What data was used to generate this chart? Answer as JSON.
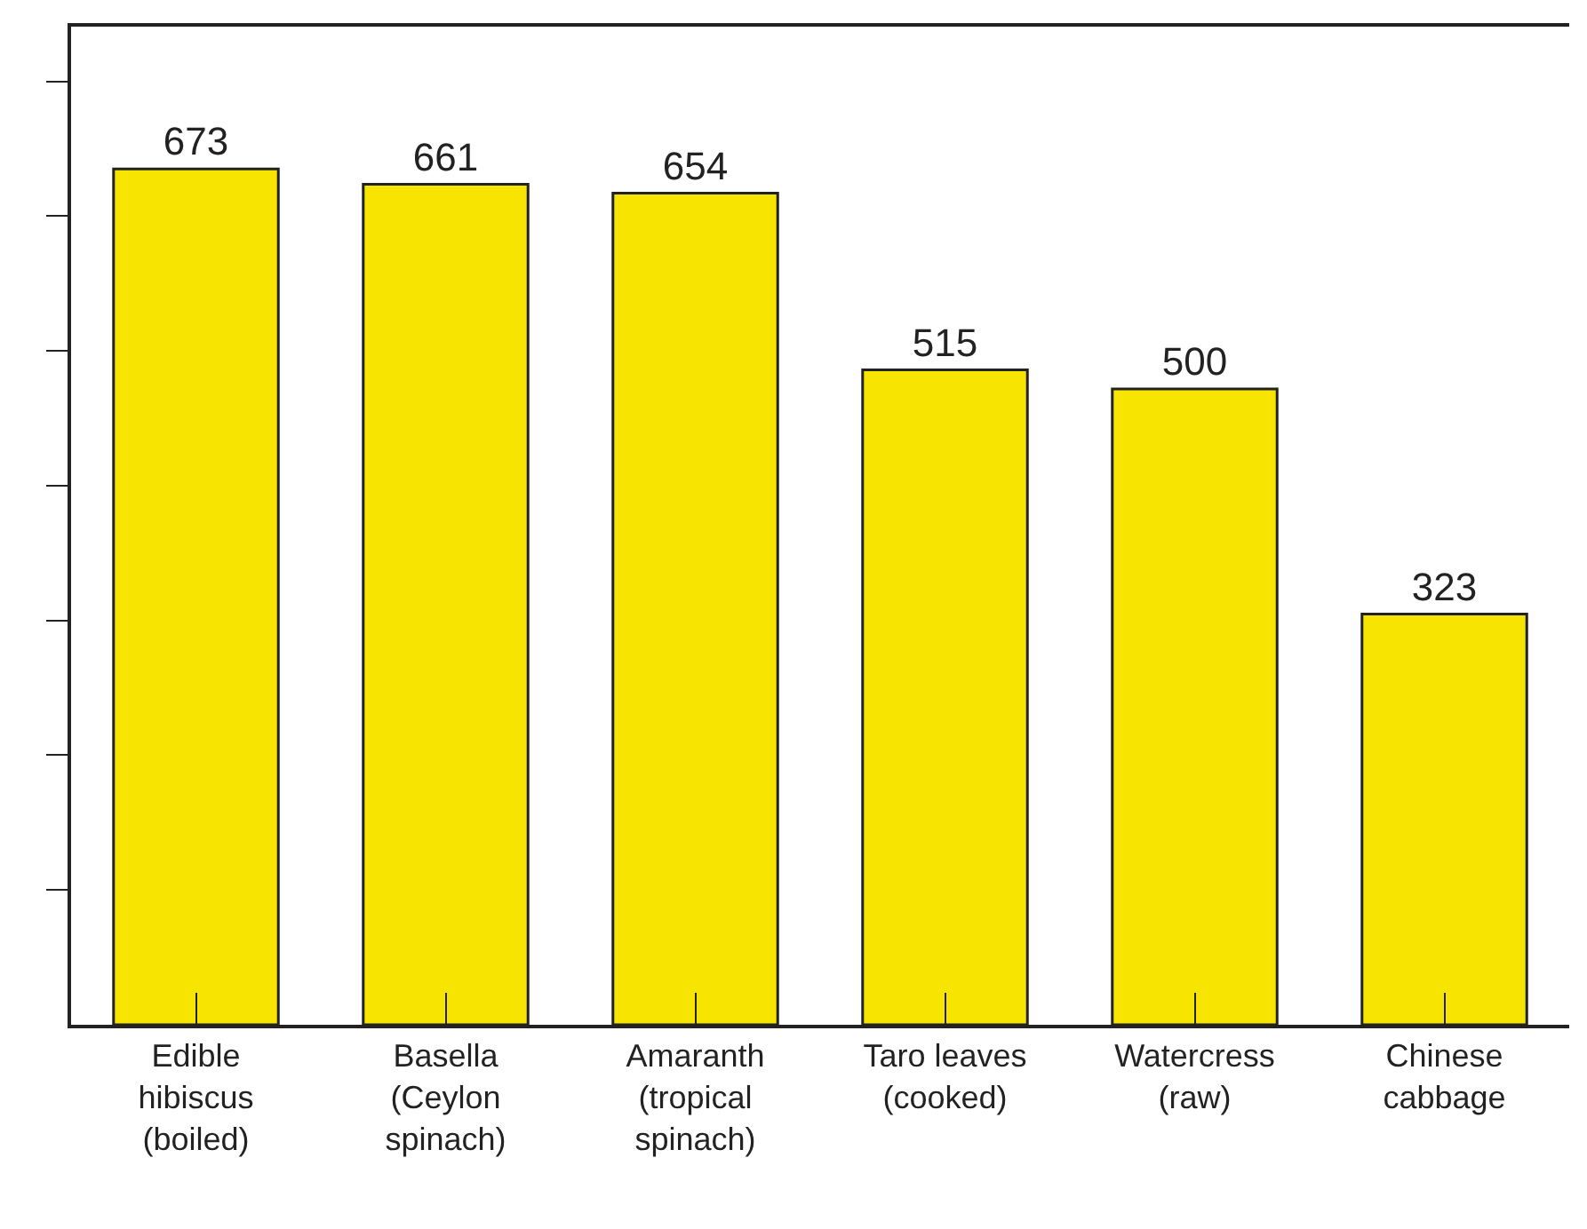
{
  "chart_data": {
    "type": "bar",
    "categories": [
      "Edible\nhibiscus\n(boiled)",
      "Basella\n(Ceylon\nspinach)",
      "Amaranth\n(tropical\nspinach)",
      "Taro leaves\n(cooked)",
      "Watercress\n(raw)",
      "Chinese\ncabbage"
    ],
    "values": [
      673,
      661,
      654,
      515,
      500,
      323
    ],
    "color": "#f7e400",
    "data_labels": true,
    "ylim": [
      0,
      785
    ],
    "yticks": [
      {
        "value": 106,
        "label": null
      },
      {
        "value": 212,
        "label": null
      },
      {
        "value": 318,
        "label": null
      },
      {
        "value": 424,
        "label": null
      },
      {
        "value": 530,
        "label": null
      },
      {
        "value": 636,
        "label": null
      },
      {
        "value": 742,
        "label": null
      }
    ],
    "tick_labels": "x"
  }
}
